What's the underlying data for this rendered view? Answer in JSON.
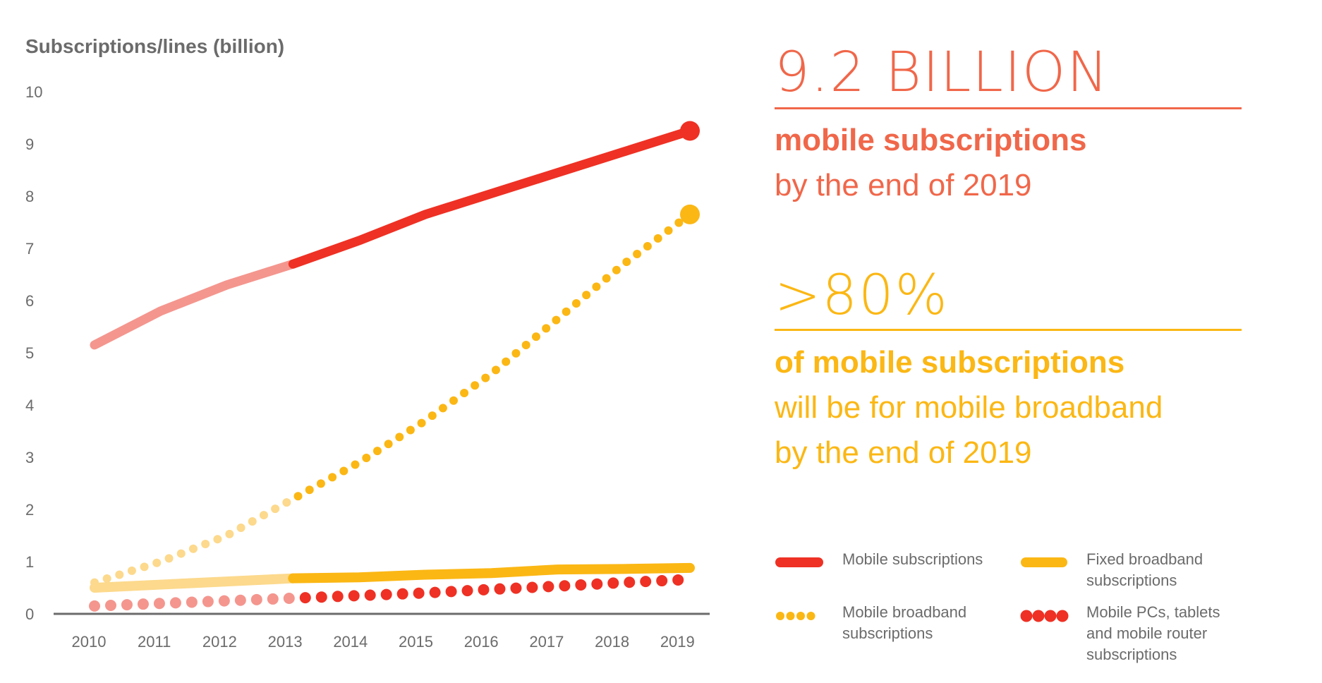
{
  "colors": {
    "mobile": "#ee3124",
    "mobile_hist": "#f4968e",
    "yellow": "#fbb714",
    "yellow_hist": "#fcd98c",
    "headline_orange": "#f0674a",
    "axis": "#6b6b6b"
  },
  "chart_data": {
    "type": "line",
    "ylabel": "Subscriptions/lines (billion)",
    "xlabel": "",
    "x": [
      2010,
      2011,
      2012,
      2013,
      2014,
      2015,
      2016,
      2017,
      2018,
      2019
    ],
    "xticks": [
      "2010",
      "2011",
      "2012",
      "2013",
      "2014",
      "2015",
      "2016",
      "2017",
      "2018",
      "2019"
    ],
    "yticks": [
      "0",
      "1",
      "2",
      "3",
      "4",
      "5",
      "6",
      "7",
      "8",
      "9",
      "10"
    ],
    "ylim": [
      0,
      10
    ],
    "grid": false,
    "historical_until": 2013,
    "legend_position": "bottom-right",
    "series": [
      {
        "name": "Mobile subscriptions",
        "style": "solid",
        "values": [
          5.15,
          5.8,
          6.3,
          6.7,
          7.15,
          7.65,
          8.05,
          8.45,
          8.85,
          9.25
        ]
      },
      {
        "name": "Fixed broadband subscriptions",
        "style": "solid",
        "values": [
          0.5,
          0.56,
          0.62,
          0.68,
          0.7,
          0.75,
          0.78,
          0.85,
          0.86,
          0.88
        ]
      },
      {
        "name": "Mobile broadband subscriptions",
        "style": "dotted",
        "values": [
          0.6,
          1.0,
          1.5,
          2.2,
          2.9,
          3.7,
          4.6,
          5.65,
          6.7,
          7.65
        ]
      },
      {
        "name": "Mobile PCs, tablets and mobile router subscriptions",
        "style": "dotted-large",
        "values": [
          0.15,
          0.2,
          0.25,
          0.3,
          0.35,
          0.4,
          0.47,
          0.53,
          0.6,
          0.66
        ]
      }
    ]
  },
  "headline1": {
    "value": "9.2 BILLION",
    "line1": "mobile subscriptions",
    "line2": "by the end of 2019"
  },
  "headline2": {
    "value": ">80%",
    "line1": "of mobile subscriptions",
    "line2": "will be for mobile broadband",
    "line3": "by the end of 2019"
  },
  "legend": {
    "mobile": [
      "Mobile subscriptions"
    ],
    "fixed": [
      "Fixed broadband",
      "subscriptions"
    ],
    "mbb": [
      "Mobile broadband",
      "subscriptions"
    ],
    "pcs": [
      "Mobile PCs, tablets",
      "and mobile router",
      "subscriptions"
    ]
  }
}
